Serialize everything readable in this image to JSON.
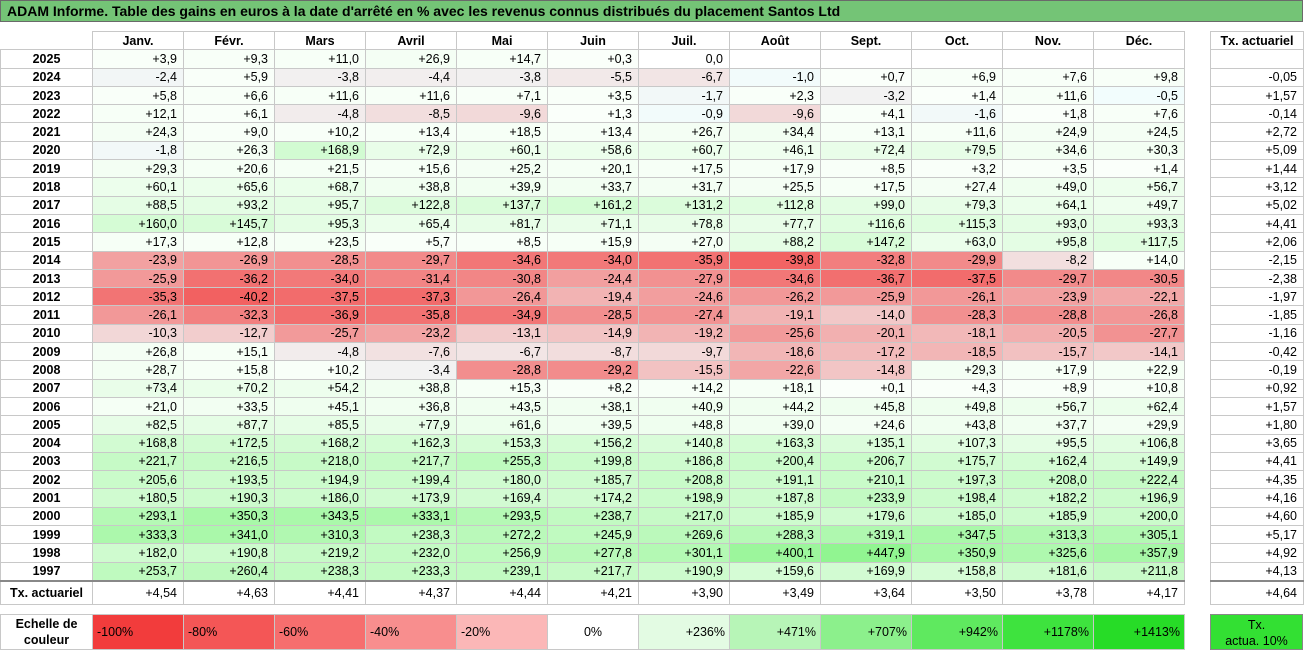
{
  "title": "ADAM Informe. Table des gains en euros à la date d'arrêté en % avec les revenus connus distribués du placement Santos Ltd",
  "months": [
    "Janv.",
    "Févr.",
    "Mars",
    "Avril",
    "Mai",
    "Juin",
    "Juil.",
    "Août",
    "Sept.",
    "Oct.",
    "Nov.",
    "Déc."
  ],
  "rate_header": "Tx. actuariel",
  "rows": [
    {
      "year": "2025",
      "values": [
        "+3,9",
        "+9,3",
        "+11,0",
        "+26,9",
        "+14,7",
        "+0,3",
        "0,0",
        "",
        "",
        "",
        "",
        ""
      ],
      "rate": ""
    },
    {
      "year": "2024",
      "values": [
        "-2,4",
        "+5,9",
        "-3,8",
        "-4,4",
        "-3,8",
        "-5,5",
        "-6,7",
        "-1,0",
        "+0,7",
        "+6,9",
        "+7,6",
        "+9,8"
      ],
      "rate": "-0,05"
    },
    {
      "year": "2023",
      "values": [
        "+5,8",
        "+6,6",
        "+11,6",
        "+11,6",
        "+7,1",
        "+3,5",
        "-1,7",
        "+2,3",
        "-3,2",
        "+1,4",
        "+11,6",
        "-0,5"
      ],
      "rate": "+1,57"
    },
    {
      "year": "2022",
      "values": [
        "+12,1",
        "+6,1",
        "-4,8",
        "-8,5",
        "-9,6",
        "+1,3",
        "-0,9",
        "-9,6",
        "+4,1",
        "-1,6",
        "+1,8",
        "+7,6"
      ],
      "rate": "-0,14"
    },
    {
      "year": "2021",
      "values": [
        "+24,3",
        "+9,0",
        "+10,2",
        "+13,4",
        "+18,5",
        "+13,4",
        "+26,7",
        "+34,4",
        "+13,1",
        "+11,6",
        "+24,9",
        "+24,5"
      ],
      "rate": "+2,72"
    },
    {
      "year": "2020",
      "values": [
        "-1,8",
        "+26,3",
        "+168,9",
        "+72,9",
        "+60,1",
        "+58,6",
        "+60,7",
        "+46,1",
        "+72,4",
        "+79,5",
        "+34,6",
        "+30,3"
      ],
      "rate": "+5,09"
    },
    {
      "year": "2019",
      "values": [
        "+29,3",
        "+20,6",
        "+21,5",
        "+15,6",
        "+25,2",
        "+20,1",
        "+17,5",
        "+17,9",
        "+8,5",
        "+3,2",
        "+3,5",
        "+1,4"
      ],
      "rate": "+1,44"
    },
    {
      "year": "2018",
      "values": [
        "+60,1",
        "+65,6",
        "+68,7",
        "+38,8",
        "+39,9",
        "+33,7",
        "+31,7",
        "+25,5",
        "+17,5",
        "+27,4",
        "+49,0",
        "+56,7"
      ],
      "rate": "+3,12"
    },
    {
      "year": "2017",
      "values": [
        "+88,5",
        "+93,2",
        "+95,7",
        "+122,8",
        "+137,7",
        "+161,2",
        "+131,2",
        "+112,8",
        "+99,0",
        "+79,3",
        "+64,1",
        "+49,7"
      ],
      "rate": "+5,02"
    },
    {
      "year": "2016",
      "values": [
        "+160,0",
        "+145,7",
        "+95,3",
        "+65,4",
        "+81,7",
        "+71,1",
        "+78,8",
        "+77,7",
        "+116,6",
        "+115,3",
        "+93,0",
        "+93,3"
      ],
      "rate": "+4,41"
    },
    {
      "year": "2015",
      "values": [
        "+17,3",
        "+12,8",
        "+23,5",
        "+5,7",
        "+8,5",
        "+15,9",
        "+27,0",
        "+88,2",
        "+147,2",
        "+63,0",
        "+95,8",
        "+117,5"
      ],
      "rate": "+2,06"
    },
    {
      "year": "2014",
      "values": [
        "-23,9",
        "-26,9",
        "-28,5",
        "-29,7",
        "-34,6",
        "-34,0",
        "-35,9",
        "-39,8",
        "-32,8",
        "-29,9",
        "-8,2",
        "+14,0"
      ],
      "rate": "-2,15"
    },
    {
      "year": "2013",
      "values": [
        "-25,9",
        "-36,2",
        "-34,0",
        "-31,4",
        "-30,8",
        "-24,4",
        "-27,9",
        "-34,6",
        "-36,7",
        "-37,5",
        "-29,7",
        "-30,5"
      ],
      "rate": "-2,38"
    },
    {
      "year": "2012",
      "values": [
        "-35,3",
        "-40,2",
        "-37,5",
        "-37,3",
        "-26,4",
        "-19,4",
        "-24,6",
        "-26,2",
        "-25,9",
        "-26,1",
        "-23,9",
        "-22,1"
      ],
      "rate": "-1,97"
    },
    {
      "year": "2011",
      "values": [
        "-26,1",
        "-32,3",
        "-36,9",
        "-35,8",
        "-34,9",
        "-28,5",
        "-27,4",
        "-19,1",
        "-14,0",
        "-28,3",
        "-28,8",
        "-26,8"
      ],
      "rate": "-1,85"
    },
    {
      "year": "2010",
      "values": [
        "-10,3",
        "-12,7",
        "-25,7",
        "-23,2",
        "-13,1",
        "-14,9",
        "-19,2",
        "-25,6",
        "-20,1",
        "-18,1",
        "-20,5",
        "-27,7"
      ],
      "rate": "-1,16"
    },
    {
      "year": "2009",
      "values": [
        "+26,8",
        "+15,1",
        "-4,8",
        "-7,6",
        "-6,7",
        "-8,7",
        "-9,7",
        "-18,6",
        "-17,2",
        "-18,5",
        "-15,7",
        "-14,1"
      ],
      "rate": "-0,42"
    },
    {
      "year": "2008",
      "values": [
        "+28,7",
        "+15,8",
        "+10,2",
        "-3,4",
        "-28,8",
        "-29,2",
        "-15,5",
        "-22,6",
        "-14,8",
        "+29,3",
        "+17,9",
        "+22,9"
      ],
      "rate": "-0,19"
    },
    {
      "year": "2007",
      "values": [
        "+73,4",
        "+70,2",
        "+54,2",
        "+38,8",
        "+15,3",
        "+8,2",
        "+14,2",
        "+18,1",
        "+0,1",
        "+4,3",
        "+8,9",
        "+10,8"
      ],
      "rate": "+0,92"
    },
    {
      "year": "2006",
      "values": [
        "+21,0",
        "+33,5",
        "+45,1",
        "+36,8",
        "+43,5",
        "+38,1",
        "+40,9",
        "+44,2",
        "+45,8",
        "+49,8",
        "+56,7",
        "+62,4"
      ],
      "rate": "+1,57"
    },
    {
      "year": "2005",
      "values": [
        "+82,5",
        "+87,7",
        "+85,5",
        "+77,9",
        "+61,6",
        "+39,5",
        "+48,8",
        "+39,0",
        "+24,6",
        "+43,8",
        "+37,7",
        "+29,9"
      ],
      "rate": "+1,80"
    },
    {
      "year": "2004",
      "values": [
        "+168,8",
        "+172,5",
        "+168,2",
        "+162,3",
        "+153,3",
        "+156,2",
        "+140,8",
        "+163,3",
        "+135,1",
        "+107,3",
        "+95,5",
        "+106,8"
      ],
      "rate": "+3,65"
    },
    {
      "year": "2003",
      "values": [
        "+221,7",
        "+216,5",
        "+218,0",
        "+217,7",
        "+255,3",
        "+199,8",
        "+186,8",
        "+200,4",
        "+206,7",
        "+175,7",
        "+162,4",
        "+149,9"
      ],
      "rate": "+4,41"
    },
    {
      "year": "2002",
      "values": [
        "+205,6",
        "+193,5",
        "+194,9",
        "+199,4",
        "+180,0",
        "+185,7",
        "+208,8",
        "+191,1",
        "+210,1",
        "+197,3",
        "+208,0",
        "+222,4"
      ],
      "rate": "+4,35"
    },
    {
      "year": "2001",
      "values": [
        "+180,5",
        "+190,3",
        "+186,0",
        "+173,9",
        "+169,4",
        "+174,2",
        "+198,9",
        "+187,8",
        "+233,9",
        "+198,4",
        "+182,2",
        "+196,9"
      ],
      "rate": "+4,16"
    },
    {
      "year": "2000",
      "values": [
        "+293,1",
        "+350,3",
        "+343,5",
        "+333,1",
        "+293,5",
        "+238,7",
        "+217,0",
        "+185,9",
        "+179,6",
        "+185,0",
        "+185,9",
        "+200,0"
      ],
      "rate": "+4,60"
    },
    {
      "year": "1999",
      "values": [
        "+333,3",
        "+341,0",
        "+310,3",
        "+238,3",
        "+272,2",
        "+245,9",
        "+269,6",
        "+288,3",
        "+319,1",
        "+347,5",
        "+313,3",
        "+305,1"
      ],
      "rate": "+5,17"
    },
    {
      "year": "1998",
      "values": [
        "+182,0",
        "+190,8",
        "+219,2",
        "+232,0",
        "+256,9",
        "+277,8",
        "+301,1",
        "+400,1",
        "+447,9",
        "+350,9",
        "+325,6",
        "+357,9"
      ],
      "rate": "+4,92"
    },
    {
      "year": "1997",
      "values": [
        "+253,7",
        "+260,4",
        "+238,3",
        "+233,3",
        "+239,1",
        "+217,7",
        "+190,9",
        "+159,6",
        "+169,9",
        "+158,8",
        "+181,6",
        "+211,8"
      ],
      "rate": "+4,13"
    }
  ],
  "actuarial_row": {
    "label": "Tx. actuariel",
    "values": [
      "+4,54",
      "+4,63",
      "+4,41",
      "+4,37",
      "+4,44",
      "+4,21",
      "+3,90",
      "+3,49",
      "+3,64",
      "+3,50",
      "+3,78",
      "+4,17"
    ],
    "rate": "+4,64"
  },
  "scale": {
    "label_line1": "Echelle de",
    "label_line2": "couleur",
    "steps": [
      {
        "text": "-100%",
        "color": "#f23c3c",
        "align": "left"
      },
      {
        "text": "-80%",
        "color": "#f45656",
        "align": "left"
      },
      {
        "text": "-60%",
        "color": "#f66e6e",
        "align": "left"
      },
      {
        "text": "-40%",
        "color": "#f88e8e",
        "align": "left"
      },
      {
        "text": "-20%",
        "color": "#fbb7b7",
        "align": "left"
      },
      {
        "text": "0%",
        "color": "#ffffff",
        "align": "center"
      },
      {
        "text": "+236%",
        "color": "#e3fbe3",
        "align": "right"
      },
      {
        "text": "+471%",
        "color": "#b7f5b7",
        "align": "right"
      },
      {
        "text": "+707%",
        "color": "#8cf08c",
        "align": "right"
      },
      {
        "text": "+942%",
        "color": "#5fe95f",
        "align": "right"
      },
      {
        "text": "+1178%",
        "color": "#3ee33e",
        "align": "right"
      },
      {
        "text": "+1413%",
        "color": "#27dc27",
        "align": "right"
      }
    ],
    "rate_legend_line1": "Tx.",
    "rate_legend_line2": "actua. 10%"
  },
  "colors": {
    "title_bg": "#74c476",
    "neg_max": "#f05050",
    "pos_max": "#22dd22"
  }
}
